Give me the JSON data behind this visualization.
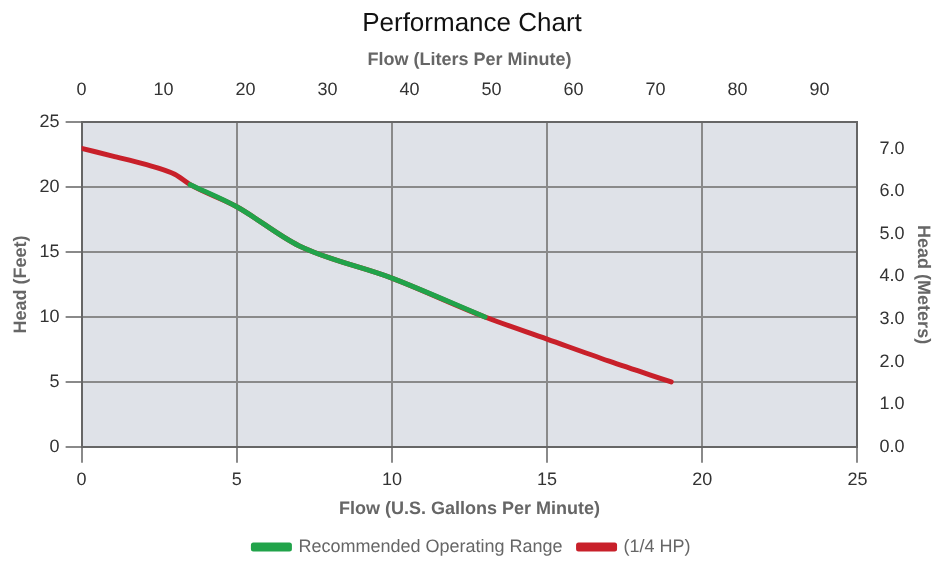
{
  "chart_data": {
    "type": "line",
    "title": "Performance Chart",
    "xlabel": "Flow (U.S. Gallons Per Minute)",
    "ylabel": "Head (Feet)",
    "y2label": "Head (Meters)",
    "x2label": "Flow (Liters Per Minute)",
    "xlim": [
      0,
      25
    ],
    "xticks": [
      0,
      5,
      10,
      15,
      20,
      25
    ],
    "ylim": [
      0,
      25
    ],
    "yticks": [
      0,
      5,
      10,
      15,
      20,
      25
    ],
    "x2lim": [
      0,
      94.635
    ],
    "x2ticks": [
      0,
      10,
      20,
      30,
      40,
      50,
      60,
      70,
      80,
      90
    ],
    "y2lim": [
      0,
      7.62
    ],
    "y2ticks": [
      {
        "value": 0,
        "label": "0.0"
      },
      {
        "value": 1,
        "label": "1.0"
      },
      {
        "value": 2,
        "label": "2.0"
      },
      {
        "value": 3,
        "label": "3.0"
      },
      {
        "value": 4,
        "label": "4.0"
      },
      {
        "value": 5,
        "label": "5.0"
      },
      {
        "value": 6,
        "label": "6.0"
      },
      {
        "value": 7,
        "label": "7.0"
      }
    ],
    "series": [
      {
        "name": "(1/4 HP)",
        "color": "#c8202a",
        "x": [
          0,
          1,
          2,
          3,
          3.5,
          5,
          7,
          10,
          13,
          15,
          17,
          19
        ],
        "values": [
          23,
          22.4,
          21.8,
          21,
          20.2,
          18.5,
          15.5,
          13,
          10,
          8.3,
          6.6,
          5
        ]
      },
      {
        "name": "Recommended Operating Range",
        "color": "#21a34a",
        "x": [
          3.5,
          5,
          7,
          10,
          13
        ],
        "values": [
          20.2,
          18.5,
          15.5,
          13,
          10
        ]
      }
    ],
    "grid": true,
    "legend": "bottom",
    "marker": "none",
    "line_style": "solid"
  }
}
